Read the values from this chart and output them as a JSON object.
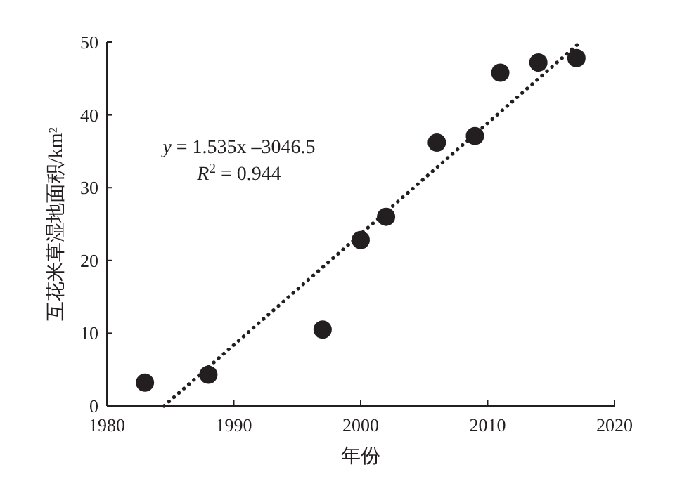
{
  "chart_data": {
    "type": "scatter",
    "xlabel": "年份",
    "ylabel": "互花米草湿地面积/km²",
    "x": [
      1983,
      1988,
      1997,
      2000,
      2002,
      2006,
      2009,
      2011,
      2014,
      2017
    ],
    "series": [
      {
        "type": "scatter",
        "color": "#231f20",
        "marker": "circle",
        "values": [
          3.2,
          4.3,
          10.5,
          22.8,
          26.0,
          36.2,
          37.1,
          45.8,
          47.2,
          47.8
        ]
      },
      {
        "type": "line",
        "color": "#231f20",
        "line_style": "dotted",
        "marker": "none",
        "x": [
          1984.5,
          2017.3
        ],
        "values": [
          0,
          50
        ]
      }
    ],
    "annotations": [
      {
        "text": "*y* = 1.535x –3046.5"
      },
      {
        "text": "*R*$^{2}$ = 0.944"
      }
    ],
    "xlim": [
      1980,
      2020
    ],
    "ylim": [
      0,
      50
    ],
    "xticks": [
      1980,
      1990,
      2000,
      2010,
      2020
    ],
    "yticks": [
      0,
      10,
      20,
      30,
      40,
      50
    ],
    "grid": false
  }
}
